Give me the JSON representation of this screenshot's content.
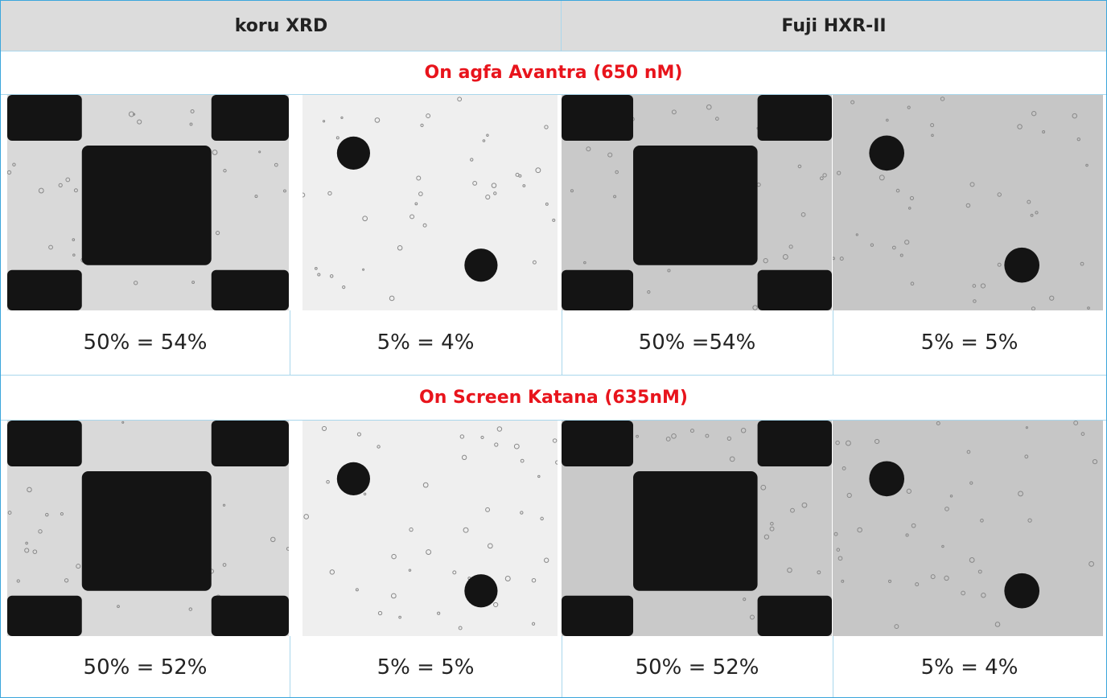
{
  "header": {
    "columns": [
      "koru XRD",
      "Fuji HXR-II"
    ]
  },
  "sections": [
    {
      "title": "On agfa Avantra (650 nM)",
      "captions": [
        "50% = 54%",
        "5% = 4%",
        "50% =54%",
        "5% = 5%"
      ]
    },
    {
      "title": "On Screen Katana (635nM)",
      "captions": [
        "50% = 52%",
        "5% = 5%",
        "50% = 52%",
        "5% = 4%"
      ]
    }
  ]
}
